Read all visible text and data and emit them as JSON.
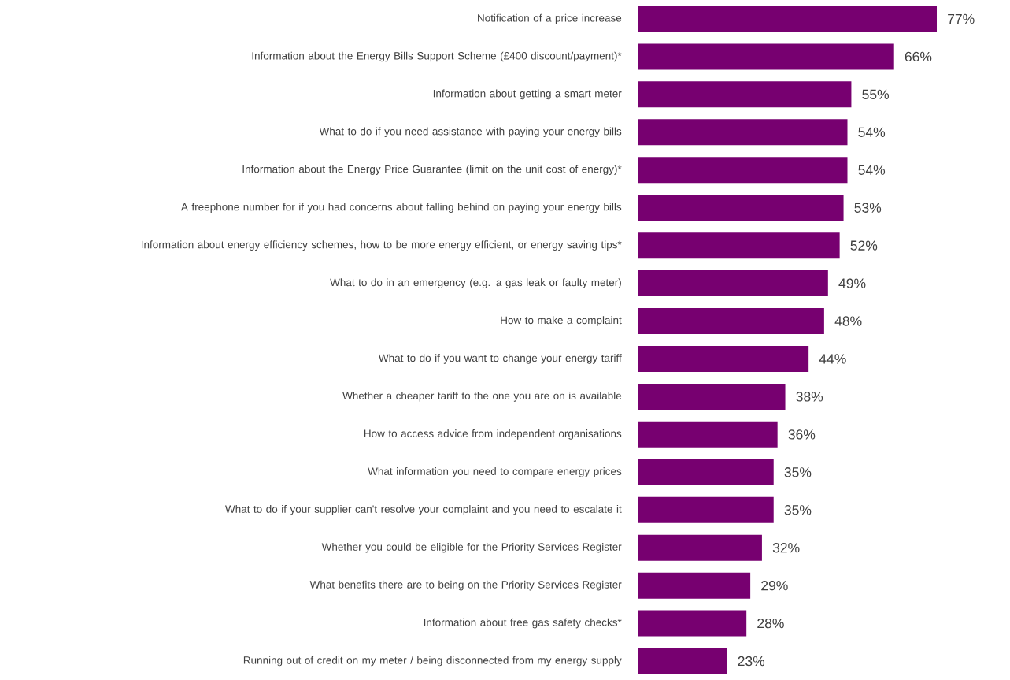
{
  "chart_data": {
    "type": "bar",
    "orientation": "horizontal",
    "color": "#770070",
    "categories": [
      "Notification of a price increase",
      "Information about the Energy Bills Support Scheme (£400 discount/payment)*",
      "Information about getting a smart meter",
      "What to do if you need assistance with paying your energy bills",
      "Information about the Energy Price Guarantee (limit on the unit cost of energy)*",
      "A freephone number for if you had concerns about falling behind on paying your energy bills",
      "Information about energy efficiency schemes, how to be more energy efficient, or energy saving tips*",
      "What to do in an emergency (e.g. a gas leak or faulty meter)",
      "How to make a complaint",
      "What to do if you want to change your energy tariff",
      "Whether a cheaper tariff to the one you are on is available",
      "How to access advice from independent organisations",
      "What information you need to compare energy prices",
      "What to do if your supplier can't resolve your complaint and you need to escalate it",
      "Whether you could be eligible for the Priority Services Register",
      "What benefits there are to being on the Priority Services Register",
      "Information about free gas safety checks*",
      "Running out of credit on my meter / being disconnected from my energy supply"
    ],
    "values": [
      77,
      66,
      55,
      54,
      54,
      53,
      52,
      49,
      48,
      44,
      38,
      36,
      35,
      35,
      32,
      29,
      28,
      23
    ],
    "value_labels": [
      "77%",
      "66%",
      "55%",
      "54%",
      "54%",
      "53%",
      "52%",
      "49%",
      "48%",
      "44%",
      "38%",
      "36%",
      "35%",
      "35%",
      "32%",
      "29%",
      "28%",
      "23%"
    ]
  }
}
